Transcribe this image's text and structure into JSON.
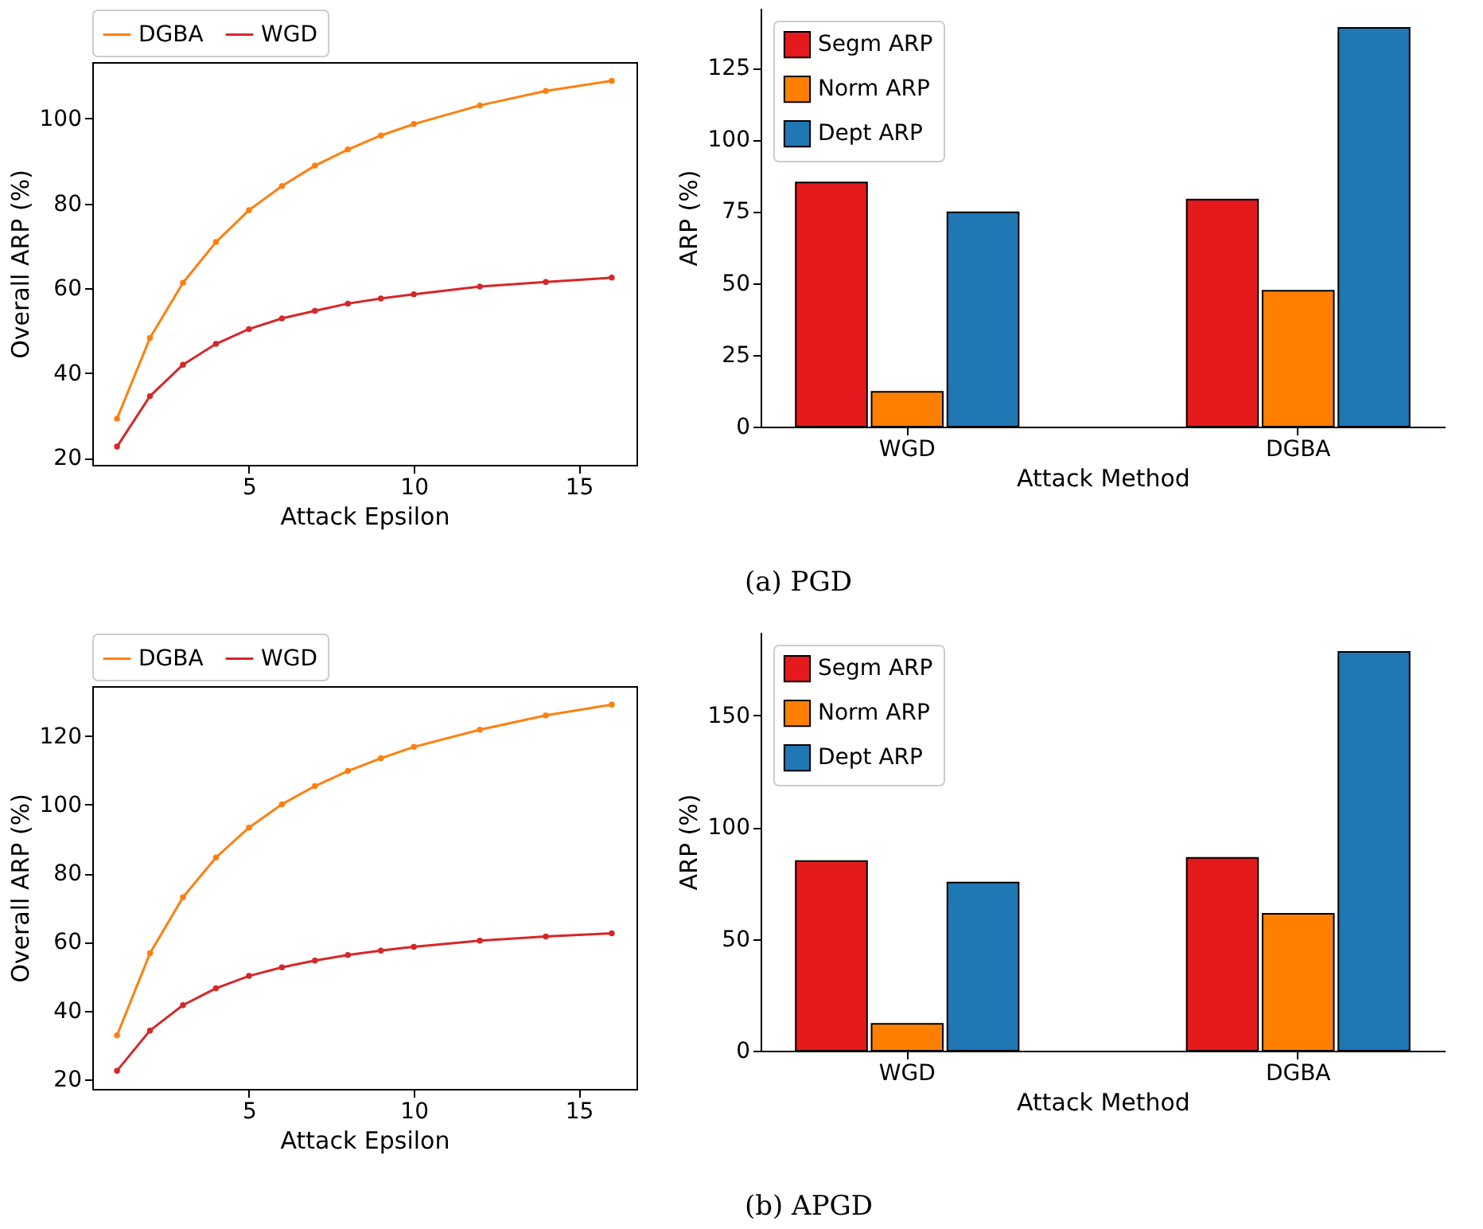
{
  "chart_data": [
    {
      "type": "line",
      "xlabel": "Attack Epsilon",
      "ylabel": "Overall ARP (%)",
      "x": [
        1,
        2,
        3,
        4,
        5,
        6,
        7,
        8,
        9,
        10,
        12,
        14,
        16
      ],
      "xlim": [
        0.25,
        16.75
      ],
      "xticks": [
        5,
        10,
        15
      ],
      "ylim": [
        18.4,
        113.3
      ],
      "yticks": [
        20,
        40,
        60,
        80,
        100
      ],
      "marker": "circle",
      "line_style": "solid",
      "legend": "top",
      "grid": false,
      "series": [
        {
          "name": "DGBA",
          "color": "#ff7f0e",
          "values": [
            29.3,
            48.3,
            61.3,
            70.9,
            78.4,
            84.1,
            88.9,
            92.7,
            96.0,
            98.7,
            103.1,
            106.5,
            108.9
          ]
        },
        {
          "name": "WGD",
          "color": "#d62728",
          "values": [
            22.7,
            34.6,
            42.0,
            46.9,
            50.4,
            52.9,
            54.7,
            56.4,
            57.6,
            58.6,
            60.4,
            61.5,
            62.5
          ]
        }
      ]
    },
    {
      "type": "bar",
      "xlabel": "Attack Method",
      "ylabel": "ARP (%)",
      "categories": [
        "WGD",
        "DGBA"
      ],
      "ylim": [
        0,
        145.8
      ],
      "yticks": [
        0,
        25,
        50,
        75,
        100,
        125
      ],
      "legend": "top left",
      "grid": false,
      "annotations": [
        "(a) PGD"
      ],
      "series": [
        {
          "name": "Segm ARP",
          "color": "#e41a1c",
          "values": [
            85.0,
            79.1
          ]
        },
        {
          "name": "Norm ARP",
          "color": "#ff7f00",
          "values": [
            12.1,
            47.3
          ]
        },
        {
          "name": "Dept ARP",
          "color": "#1f77b4",
          "values": [
            74.6,
            138.9
          ]
        }
      ]
    },
    {
      "type": "line",
      "xlabel": "Attack Epsilon",
      "ylabel": "Overall ARP (%)",
      "x": [
        1,
        2,
        3,
        4,
        5,
        6,
        7,
        8,
        9,
        10,
        12,
        14,
        16
      ],
      "xlim": [
        0.25,
        16.75
      ],
      "xticks": [
        5,
        10,
        15
      ],
      "ylim": [
        17.2,
        134.5
      ],
      "yticks": [
        20,
        40,
        60,
        80,
        100,
        120
      ],
      "marker": "circle",
      "line_style": "solid",
      "legend": "top",
      "grid": false,
      "series": [
        {
          "name": "DGBA",
          "color": "#ff7f0e",
          "values": [
            32.8,
            56.7,
            73.0,
            84.6,
            93.3,
            100.1,
            105.4,
            109.8,
            113.5,
            116.8,
            121.8,
            126.0,
            129.1
          ]
        },
        {
          "name": "WGD",
          "color": "#d62728",
          "values": [
            22.5,
            34.2,
            41.6,
            46.5,
            50.1,
            52.6,
            54.6,
            56.2,
            57.5,
            58.6,
            60.4,
            61.6,
            62.5
          ]
        }
      ]
    },
    {
      "type": "bar",
      "xlabel": "Attack Method",
      "ylabel": "ARP (%)",
      "categories": [
        "WGD",
        "DGBA"
      ],
      "ylim": [
        0,
        187.2
      ],
      "yticks": [
        0,
        50,
        100,
        150
      ],
      "legend": "top left",
      "grid": false,
      "annotations": [
        "(b) APGD"
      ],
      "series": [
        {
          "name": "Segm ARP",
          "color": "#e41a1c",
          "values": [
            84.8,
            86.2
          ]
        },
        {
          "name": "Norm ARP",
          "color": "#ff7f00",
          "values": [
            12.0,
            61.2
          ]
        },
        {
          "name": "Dept ARP",
          "color": "#1f77b4",
          "values": [
            75.2,
            178.3
          ]
        }
      ]
    }
  ]
}
